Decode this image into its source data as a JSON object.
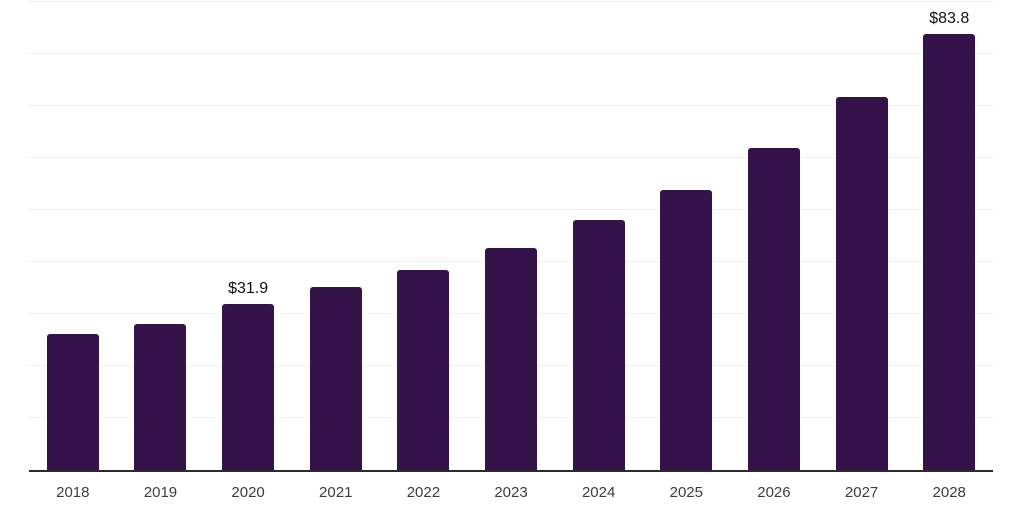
{
  "chart_data": {
    "type": "bar",
    "title": "",
    "xlabel": "",
    "ylabel": "",
    "categories": [
      "2018",
      "2019",
      "2020",
      "2021",
      "2022",
      "2023",
      "2024",
      "2025",
      "2026",
      "2027",
      "2028"
    ],
    "values": [
      26.1,
      28.0,
      31.9,
      35.1,
      38.5,
      42.7,
      48.0,
      53.9,
      61.9,
      71.7,
      83.8
    ],
    "data_labels": [
      "",
      "",
      "$31.9",
      "",
      "",
      "",
      "",
      "",
      "",
      "",
      "$83.8"
    ],
    "ylim": [
      0,
      90
    ],
    "gridline_step": 10,
    "grid": "horizontal",
    "legend_position": "none",
    "colors": {
      "bar": "#36124B",
      "axis_line": "#2b2b2b",
      "gridline": "#f0f0f0",
      "data_label_text": "#111111",
      "tick_label_text": "#3d3d3d",
      "background": "#ffffff"
    }
  }
}
